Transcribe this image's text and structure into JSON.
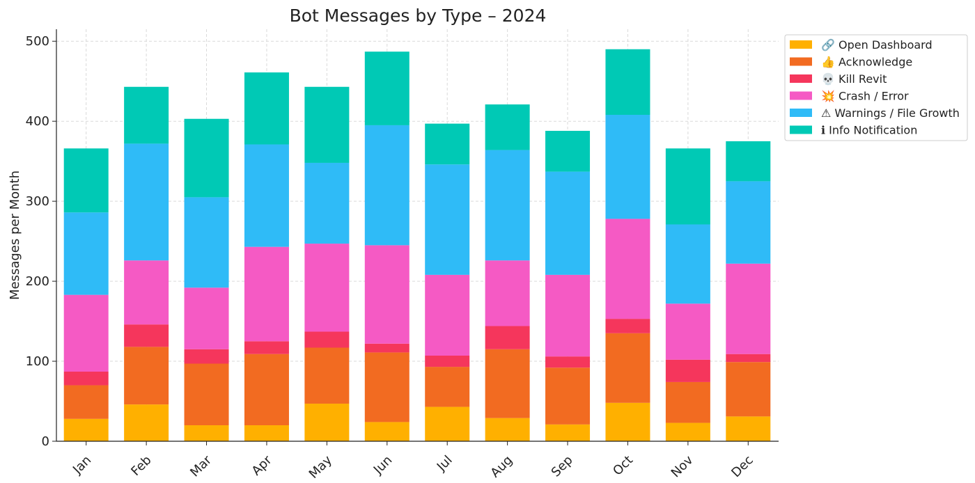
{
  "chart_data": {
    "type": "bar",
    "stacked": true,
    "title": "Bot Messages by Type – 2024",
    "xlabel": "",
    "ylabel": "Messages per Month",
    "ylim": [
      0,
      515
    ],
    "yticks": [
      0,
      100,
      200,
      300,
      400,
      500
    ],
    "grid": true,
    "legend_position": "top-right",
    "categories": [
      "Jan",
      "Feb",
      "Mar",
      "Apr",
      "May",
      "Jun",
      "Jul",
      "Aug",
      "Sep",
      "Oct",
      "Nov",
      "Dec"
    ],
    "series": [
      {
        "name": "🔗 Open Dashboard",
        "color": "#FFB000",
        "values": [
          28,
          46,
          20,
          20,
          47,
          24,
          43,
          29,
          21,
          48,
          23,
          31
        ]
      },
      {
        "name": "👍 Acknowledge",
        "color": "#F26B21",
        "values": [
          42,
          72,
          77,
          89,
          70,
          87,
          50,
          86,
          71,
          87,
          51,
          68
        ]
      },
      {
        "name": "💀 Kill Revit",
        "color": "#F5365C",
        "values": [
          17,
          28,
          18,
          16,
          20,
          11,
          14,
          29,
          14,
          18,
          28,
          10
        ]
      },
      {
        "name": "💥 Crash / Error",
        "color": "#F55AC4",
        "values": [
          96,
          80,
          77,
          118,
          110,
          123,
          101,
          82,
          102,
          125,
          70,
          113
        ]
      },
      {
        "name": "⚠ Warnings / File Growth",
        "color": "#2FBBF7",
        "values": [
          103,
          146,
          113,
          128,
          101,
          150,
          138,
          138,
          129,
          130,
          99,
          103
        ]
      },
      {
        "name": "ℹ Info Notification",
        "color": "#00C9B5",
        "values": [
          80,
          71,
          98,
          90,
          95,
          92,
          51,
          57,
          51,
          82,
          95,
          50
        ]
      }
    ]
  }
}
